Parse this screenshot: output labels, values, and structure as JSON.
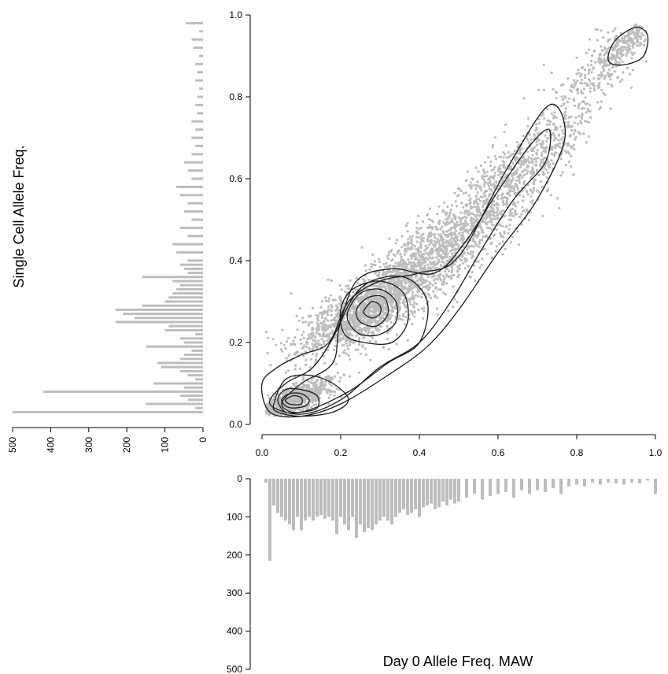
{
  "chart_data": [
    {
      "panel": "main",
      "type": "scatter",
      "overlay": "density contours",
      "xlabel": "Day 0 Allele Freq. MAW",
      "ylabel": "Single Cell Allele Freq.",
      "xlim": [
        0,
        1
      ],
      "ylim": [
        0,
        1
      ],
      "x_ticks": [
        "0.0",
        "0.2",
        "0.4",
        "0.6",
        "0.8",
        "1.0"
      ],
      "y_ticks": [
        "0.0",
        "0.2",
        "0.4",
        "0.6",
        "0.8",
        "1.0"
      ],
      "point_color": "#bdbdbd",
      "contour_color": "#1a1a1a",
      "clusters": [
        {
          "x": 0.08,
          "y": 0.06,
          "sx": 0.05,
          "sy": 0.025,
          "n": 900
        },
        {
          "x": 0.27,
          "y": 0.28,
          "sx": 0.09,
          "sy": 0.06,
          "n": 1500
        },
        {
          "x": 0.45,
          "y": 0.42,
          "sx": 0.1,
          "sy": 0.07,
          "n": 1100
        },
        {
          "x": 0.65,
          "y": 0.62,
          "sx": 0.08,
          "sy": 0.07,
          "n": 700
        },
        {
          "x": 0.85,
          "y": 0.85,
          "sx": 0.06,
          "sy": 0.06,
          "n": 250
        },
        {
          "x": 0.92,
          "y": 0.93,
          "sx": 0.03,
          "sy": 0.03,
          "n": 180
        }
      ],
      "contours": [
        [
          [
            0.0,
            0.1
          ],
          [
            0.04,
            0.14
          ],
          [
            0.1,
            0.17
          ],
          [
            0.17,
            0.2
          ],
          [
            0.22,
            0.3
          ],
          [
            0.3,
            0.35
          ],
          [
            0.4,
            0.37
          ],
          [
            0.5,
            0.41
          ],
          [
            0.62,
            0.62
          ],
          [
            0.73,
            0.78
          ],
          [
            0.77,
            0.7
          ],
          [
            0.7,
            0.55
          ],
          [
            0.6,
            0.42
          ],
          [
            0.5,
            0.28
          ],
          [
            0.42,
            0.19
          ],
          [
            0.32,
            0.12
          ],
          [
            0.2,
            0.05
          ],
          [
            0.1,
            0.02
          ],
          [
            0.02,
            0.03
          ]
        ],
        [
          [
            0.02,
            0.05
          ],
          [
            0.06,
            0.1
          ],
          [
            0.13,
            0.14
          ],
          [
            0.19,
            0.23
          ],
          [
            0.24,
            0.35
          ],
          [
            0.33,
            0.38
          ],
          [
            0.44,
            0.37
          ],
          [
            0.52,
            0.45
          ],
          [
            0.6,
            0.57
          ],
          [
            0.68,
            0.68
          ],
          [
            0.73,
            0.72
          ],
          [
            0.72,
            0.64
          ],
          [
            0.64,
            0.55
          ],
          [
            0.56,
            0.43
          ],
          [
            0.48,
            0.3
          ],
          [
            0.4,
            0.2
          ],
          [
            0.3,
            0.14
          ],
          [
            0.2,
            0.06
          ],
          [
            0.1,
            0.025
          ]
        ],
        [
          [
            0.05,
            0.05
          ],
          [
            0.1,
            0.1
          ],
          [
            0.18,
            0.15
          ],
          [
            0.2,
            0.25
          ],
          [
            0.26,
            0.34
          ],
          [
            0.36,
            0.36
          ],
          [
            0.42,
            0.3
          ],
          [
            0.4,
            0.2
          ],
          [
            0.32,
            0.15
          ],
          [
            0.22,
            0.08
          ],
          [
            0.1,
            0.03
          ]
        ],
        [
          [
            0.2,
            0.28
          ],
          [
            0.23,
            0.33
          ],
          [
            0.3,
            0.35
          ],
          [
            0.36,
            0.32
          ],
          [
            0.37,
            0.25
          ],
          [
            0.33,
            0.2
          ],
          [
            0.26,
            0.2
          ],
          [
            0.21,
            0.22
          ]
        ],
        [
          [
            0.22,
            0.28
          ],
          [
            0.25,
            0.32
          ],
          [
            0.3,
            0.33
          ],
          [
            0.34,
            0.3
          ],
          [
            0.34,
            0.25
          ],
          [
            0.3,
            0.22
          ],
          [
            0.25,
            0.22
          ],
          [
            0.22,
            0.25
          ]
        ],
        [
          [
            0.24,
            0.28
          ],
          [
            0.27,
            0.31
          ],
          [
            0.31,
            0.31
          ],
          [
            0.32,
            0.27
          ],
          [
            0.29,
            0.24
          ],
          [
            0.25,
            0.25
          ]
        ],
        [
          [
            0.26,
            0.28
          ],
          [
            0.28,
            0.3
          ],
          [
            0.3,
            0.29
          ],
          [
            0.3,
            0.27
          ],
          [
            0.28,
            0.26
          ],
          [
            0.26,
            0.27
          ]
        ],
        [
          [
            0.04,
            0.06
          ],
          [
            0.06,
            0.085
          ],
          [
            0.1,
            0.085
          ],
          [
            0.14,
            0.07
          ],
          [
            0.14,
            0.04
          ],
          [
            0.1,
            0.03
          ],
          [
            0.06,
            0.03
          ]
        ],
        [
          [
            0.05,
            0.06
          ],
          [
            0.07,
            0.075
          ],
          [
            0.1,
            0.075
          ],
          [
            0.12,
            0.06
          ],
          [
            0.11,
            0.045
          ],
          [
            0.08,
            0.04
          ],
          [
            0.06,
            0.045
          ]
        ],
        [
          [
            0.06,
            0.06
          ],
          [
            0.08,
            0.07
          ],
          [
            0.1,
            0.065
          ],
          [
            0.1,
            0.05
          ],
          [
            0.08,
            0.048
          ],
          [
            0.065,
            0.052
          ]
        ],
        [
          [
            0.03,
            0.05
          ],
          [
            0.06,
            0.11
          ],
          [
            0.12,
            0.12
          ],
          [
            0.18,
            0.1
          ],
          [
            0.22,
            0.06
          ],
          [
            0.18,
            0.03
          ],
          [
            0.1,
            0.02
          ],
          [
            0.04,
            0.03
          ]
        ],
        [
          [
            0.88,
            0.9
          ],
          [
            0.9,
            0.94
          ],
          [
            0.95,
            0.97
          ],
          [
            0.98,
            0.95
          ],
          [
            0.97,
            0.9
          ],
          [
            0.93,
            0.88
          ],
          [
            0.89,
            0.88
          ]
        ]
      ]
    },
    {
      "panel": "left-marginal",
      "type": "bar",
      "orientation": "horizontal",
      "bars_extend": "leftward",
      "axis_range": [
        0,
        500
      ],
      "ticks": [
        "500",
        "400",
        "300",
        "200",
        "100",
        "0"
      ],
      "bar_color": "#bdbdbd",
      "bins_y": [
        0.03,
        0.04,
        0.05,
        0.06,
        0.07,
        0.08,
        0.09,
        0.1,
        0.11,
        0.12,
        0.13,
        0.14,
        0.15,
        0.16,
        0.17,
        0.18,
        0.19,
        0.2,
        0.21,
        0.22,
        0.23,
        0.24,
        0.25,
        0.26,
        0.27,
        0.28,
        0.29,
        0.3,
        0.31,
        0.32,
        0.33,
        0.34,
        0.35,
        0.36,
        0.37,
        0.38,
        0.39,
        0.4,
        0.42,
        0.44,
        0.46,
        0.48,
        0.5,
        0.52,
        0.54,
        0.56,
        0.58,
        0.6,
        0.62,
        0.64,
        0.66,
        0.68,
        0.7,
        0.72,
        0.74,
        0.76,
        0.78,
        0.8,
        0.82,
        0.84,
        0.86,
        0.88,
        0.9,
        0.92,
        0.94,
        0.96,
        0.98
      ],
      "counts": [
        500,
        20,
        150,
        40,
        60,
        420,
        50,
        130,
        20,
        40,
        60,
        110,
        120,
        60,
        50,
        30,
        150,
        50,
        60,
        20,
        100,
        90,
        230,
        180,
        210,
        230,
        160,
        100,
        90,
        80,
        70,
        60,
        80,
        160,
        40,
        50,
        60,
        40,
        70,
        80,
        40,
        60,
        30,
        50,
        40,
        60,
        70,
        30,
        40,
        50,
        30,
        20,
        30,
        20,
        30,
        15,
        20,
        15,
        10,
        20,
        15,
        20,
        10,
        25,
        30,
        10,
        45
      ]
    },
    {
      "panel": "bottom-marginal",
      "type": "bar",
      "orientation": "vertical",
      "bars_extend": "downward",
      "axis_range": [
        0,
        500
      ],
      "ticks": [
        "0",
        "100",
        "200",
        "300",
        "400",
        "500"
      ],
      "bar_color": "#bdbdbd",
      "bins_x": [
        0.01,
        0.02,
        0.03,
        0.04,
        0.05,
        0.06,
        0.07,
        0.08,
        0.09,
        0.1,
        0.11,
        0.12,
        0.13,
        0.14,
        0.15,
        0.16,
        0.17,
        0.18,
        0.19,
        0.2,
        0.21,
        0.22,
        0.23,
        0.24,
        0.25,
        0.26,
        0.27,
        0.28,
        0.29,
        0.3,
        0.31,
        0.32,
        0.33,
        0.34,
        0.35,
        0.36,
        0.37,
        0.38,
        0.39,
        0.4,
        0.41,
        0.42,
        0.43,
        0.44,
        0.45,
        0.46,
        0.47,
        0.48,
        0.49,
        0.5,
        0.52,
        0.54,
        0.56,
        0.58,
        0.6,
        0.62,
        0.64,
        0.66,
        0.68,
        0.7,
        0.72,
        0.74,
        0.76,
        0.78,
        0.8,
        0.82,
        0.84,
        0.86,
        0.88,
        0.9,
        0.92,
        0.94,
        0.96,
        0.98,
        1.0
      ],
      "counts": [
        10,
        215,
        70,
        90,
        100,
        110,
        120,
        135,
        100,
        135,
        110,
        100,
        110,
        100,
        95,
        105,
        100,
        110,
        145,
        100,
        120,
        135,
        100,
        155,
        120,
        140,
        130,
        135,
        120,
        110,
        100,
        110,
        120,
        100,
        90,
        80,
        95,
        90,
        80,
        100,
        75,
        70,
        65,
        80,
        75,
        60,
        70,
        55,
        65,
        60,
        50,
        40,
        55,
        45,
        40,
        35,
        50,
        30,
        40,
        30,
        35,
        25,
        40,
        20,
        15,
        20,
        10,
        15,
        10,
        12,
        15,
        10,
        12,
        5,
        40
      ]
    }
  ]
}
